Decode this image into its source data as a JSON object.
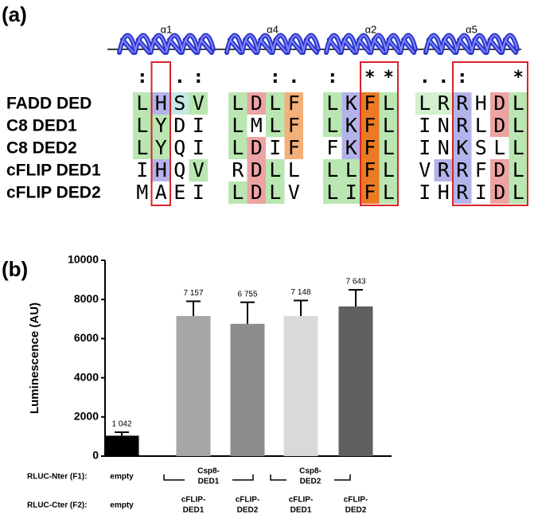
{
  "panel_a": {
    "label": "(a)",
    "helices": [
      "α1",
      "α4",
      "α2",
      "α5"
    ],
    "markers": [
      ": .:",
      "  :.",
      ": **",
      "..:  *"
    ],
    "rows": [
      {
        "name": "FADD DED",
        "groups": [
          "LHSV",
          "LDLF",
          "LKFL",
          "LRRHDL"
        ]
      },
      {
        "name": "C8 DED1",
        "groups": [
          "LYDI",
          "LMLF",
          "LKFL",
          "INRLDL"
        ]
      },
      {
        "name": "C8 DED2",
        "groups": [
          "LYQI",
          "LDIF",
          "FKFL",
          "INKSLL"
        ]
      },
      {
        "name": "cFLIP DED1",
        "groups": [
          "IHQV",
          "RDLL",
          "LLFL",
          "VRRFDL"
        ]
      },
      {
        "name": "cFLIP DED2",
        "groups": [
          "MAEI",
          "LDLV",
          "LIFL",
          "IHRIDL"
        ]
      }
    ]
  },
  "chart_data": {
    "type": "bar",
    "panel_label": "(b)",
    "y_label": "Luminescence (AU)",
    "ylim": [
      0,
      10000
    ],
    "yticks": [
      0,
      2000,
      4000,
      6000,
      8000,
      10000
    ],
    "values": [
      1042,
      7157,
      6755,
      7148,
      7643
    ],
    "value_labels": [
      "1 042",
      "7 157",
      "6 755",
      "7 148",
      "7 643"
    ],
    "errors": [
      180,
      750,
      1100,
      800,
      850
    ],
    "colors": [
      "#000000",
      "#a6a6a6",
      "#8c8c8c",
      "#d9d9d9",
      "#606060"
    ],
    "f1_label": "RLUC-Nter (F1):",
    "f1_groups": [
      [
        "empty"
      ],
      [
        "Csp8-",
        "DED1"
      ],
      [
        "Csp8-",
        "DED2"
      ]
    ],
    "f2_label": "RLUC-Cter (F2):",
    "categories": [
      [
        "empty"
      ],
      [
        "cFLIP-",
        "DED1"
      ],
      [
        "cFLIP-",
        "DED2"
      ],
      [
        "cFLIP-",
        "DED1"
      ],
      [
        "cFLIP-",
        "DED2"
      ]
    ]
  }
}
